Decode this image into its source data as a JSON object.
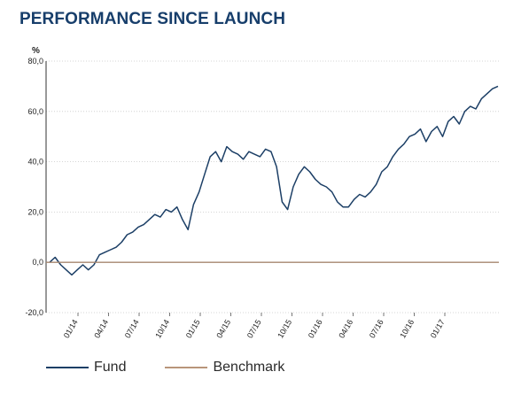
{
  "title": "PERFORMANCE SINCE LAUNCH",
  "chart_data": {
    "type": "line",
    "title": "PERFORMANCE SINCE LAUNCH",
    "ylabel": "%",
    "xlabel": "",
    "ylim": [
      -20,
      80
    ],
    "yticks": [
      -20,
      0,
      20,
      40,
      60,
      80
    ],
    "ytick_labels": [
      "-20,0",
      "0,0",
      "20,0",
      "40,0",
      "60,0",
      "80,0"
    ],
    "xticks": [
      "01/14",
      "04/14",
      "07/14",
      "10/14",
      "01/15",
      "04/15",
      "07/15",
      "10/15",
      "01/16",
      "04/16",
      "07/16",
      "10/16",
      "01/17"
    ],
    "grid": true,
    "legend_position": "bottom",
    "series": [
      {
        "name": "Fund",
        "color": "#1c3f66",
        "x": [
          "11/13",
          "12/13",
          "12/13",
          "01/14",
          "01/14",
          "02/14",
          "02/14",
          "03/14",
          "03/14",
          "04/14",
          "04/14",
          "05/14",
          "05/14",
          "06/14",
          "07/14",
          "07/14",
          "08/14",
          "08/14",
          "09/14",
          "09/14",
          "10/14",
          "10/14",
          "11/14",
          "11/14",
          "12/14",
          "12/14",
          "12/14",
          "01/15",
          "01/15",
          "02/15",
          "02/15",
          "03/15",
          "03/15",
          "04/15",
          "04/15",
          "05/15",
          "05/15",
          "06/15",
          "06/15",
          "07/15",
          "07/15",
          "08/15",
          "08/15",
          "08/15",
          "09/15",
          "09/15",
          "10/15",
          "10/15",
          "11/15",
          "11/15",
          "12/15",
          "12/15",
          "01/16",
          "01/16",
          "02/16",
          "02/16",
          "03/16",
          "03/16",
          "04/16",
          "04/16",
          "05/16",
          "05/16",
          "06/16",
          "06/16",
          "07/16",
          "07/16",
          "08/16",
          "08/16",
          "09/16",
          "09/16",
          "10/16",
          "10/16",
          "11/16",
          "11/16",
          "12/16",
          "12/16",
          "01/17",
          "01/17",
          "02/17",
          "02/17",
          "03/17",
          "03/17"
        ],
        "values": [
          0,
          2,
          -1,
          -3,
          -5,
          -3,
          -1,
          -3,
          -1,
          3,
          4,
          5,
          6,
          8,
          11,
          12,
          14,
          15,
          17,
          19,
          18,
          21,
          20,
          22,
          17,
          13,
          23,
          28,
          35,
          42,
          44,
          40,
          46,
          44,
          43,
          41,
          44,
          43,
          42,
          45,
          44,
          38,
          24,
          21,
          30,
          35,
          38,
          36,
          33,
          31,
          30,
          28,
          24,
          22,
          22,
          25,
          27,
          26,
          28,
          31,
          36,
          38,
          42,
          45,
          47,
          50,
          51,
          53,
          48,
          52,
          54,
          50,
          56,
          58,
          55,
          60,
          62,
          61,
          65,
          67,
          69,
          70
        ]
      },
      {
        "name": "Benchmark",
        "color": "#b8957a",
        "x": [
          "11/13",
          "03/17"
        ],
        "values": [
          0,
          0
        ]
      }
    ]
  },
  "legend": [
    {
      "label": "Fund",
      "color": "#1c3f66"
    },
    {
      "label": "Benchmark",
      "color": "#b8957a"
    }
  ]
}
